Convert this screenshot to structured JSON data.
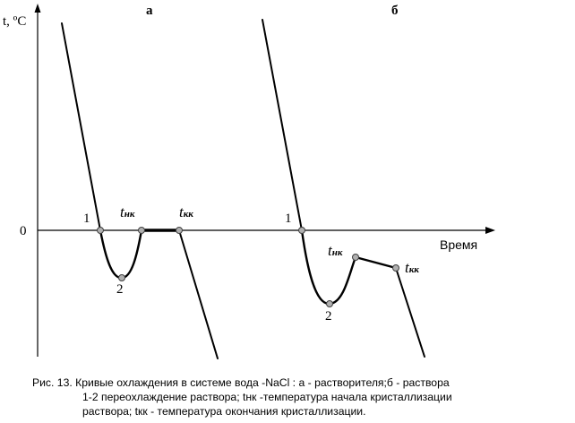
{
  "panels": {
    "a": {
      "label": "а"
    },
    "b": {
      "label": "б"
    }
  },
  "axes": {
    "y_label": "t, ºC",
    "origin_label": "0",
    "x_label": "Время"
  },
  "points": {
    "a": {
      "p1": "1",
      "p2": "2",
      "tnk_main": "t",
      "tnk_sub": "нк",
      "tkk_main": "t",
      "tkk_sub": "кк"
    },
    "b": {
      "p1": "1",
      "p2": "2",
      "tnk_main": "t",
      "tnk_sub": "нк",
      "tkk_main": "t",
      "tkk_sub": "кк"
    }
  },
  "caption": {
    "line1": "Рис. 13. Кривые охлаждения в системе вода -NaCl : а - растворителя;б - раствора",
    "line2": "1-2 переохлаждение раствора; tнк -температура начала кристаллизации",
    "line3": "раствора; tкк - температура окончания кристаллизации."
  },
  "colors": {
    "curve": "#000000",
    "marker_fill": "#b0b0b0",
    "marker_stroke": "#404040"
  }
}
